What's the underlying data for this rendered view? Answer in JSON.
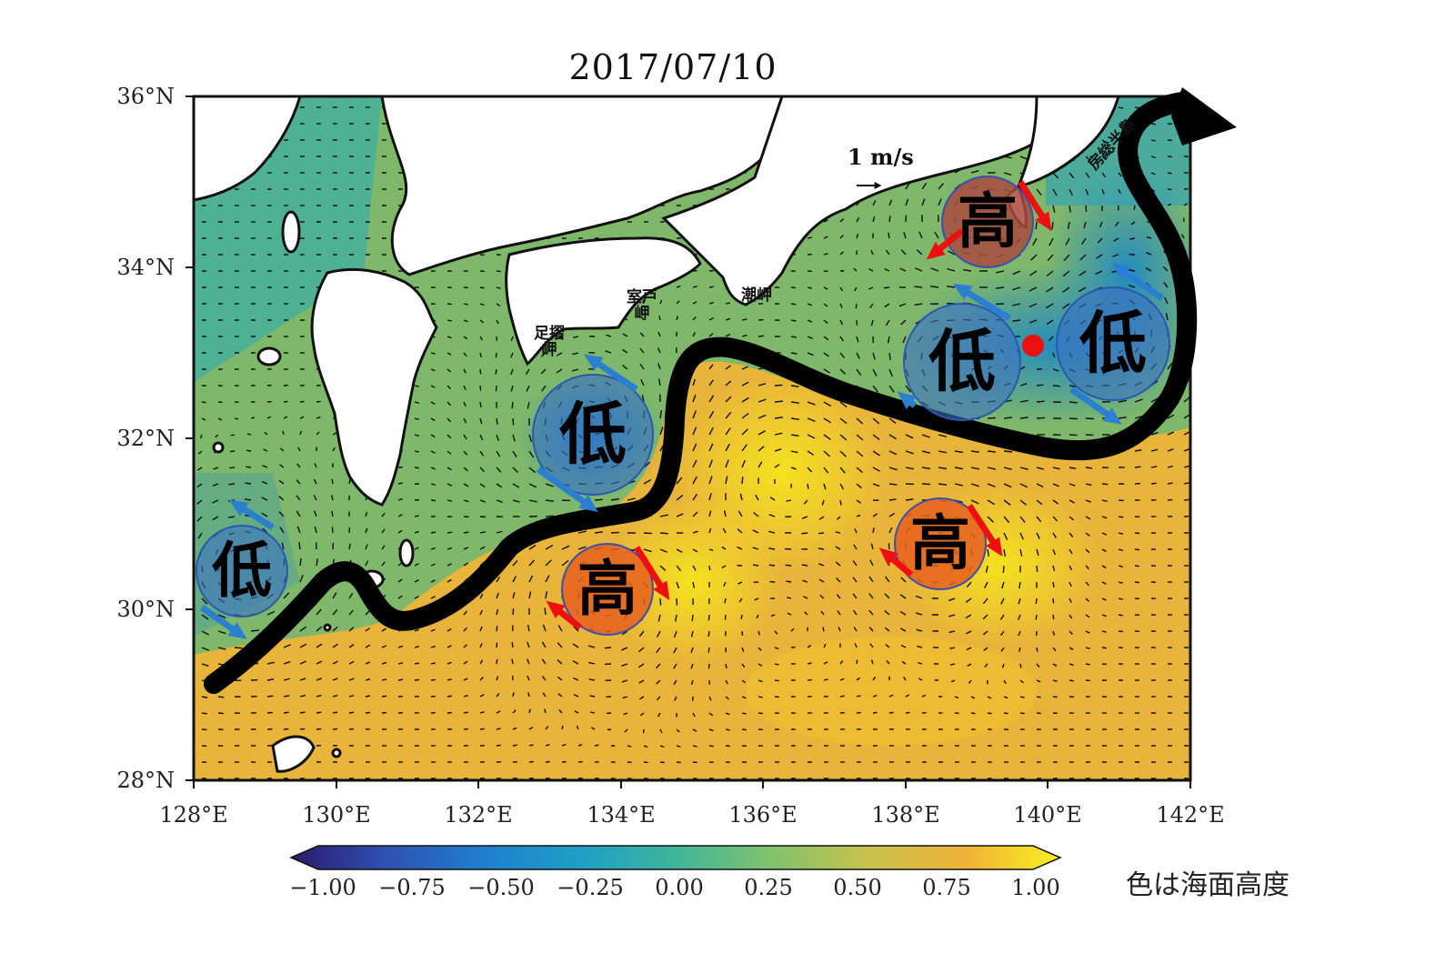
{
  "title": "2017/07/10",
  "lat_labels": [
    "36°N",
    "34°N",
    "32°N",
    "30°N",
    "28°N"
  ],
  "lon_labels": [
    "128°E",
    "130°E",
    "132°E",
    "134°E",
    "136°E",
    "138°E",
    "140°E",
    "142°E"
  ],
  "colorbar": {
    "ticks": [
      "−1.00",
      "−0.75",
      "−0.50",
      "−0.25",
      "0.00",
      "0.25",
      "0.50",
      "0.75",
      "1.00"
    ],
    "caption": "色は海面高度",
    "colors": [
      "#2b1a6b",
      "#2f4fb0",
      "#1f7fd0",
      "#1fa0c4",
      "#3fb49a",
      "#7fc26e",
      "#c7c24e",
      "#f0b23a",
      "#f8f21e"
    ]
  },
  "scale": {
    "label": "1 m/s"
  },
  "places": {
    "ashizuri": "足摺岬",
    "muroto": "室戸岬",
    "shionomisaki": "潮岬",
    "boso": "房総半島"
  },
  "eddies": [
    {
      "label": "低",
      "type": "low"
    },
    {
      "label": "低",
      "type": "low"
    },
    {
      "label": "低",
      "type": "low"
    },
    {
      "label": "低",
      "type": "low"
    },
    {
      "label": "高",
      "type": "high"
    },
    {
      "label": "高",
      "type": "high"
    },
    {
      "label": "高",
      "type": "high"
    }
  ],
  "colors": {
    "low": "#3b6fc4",
    "high": "#e05a20",
    "high_land": "#b04a3a",
    "arrow_low": "#2a7fd0",
    "arrow_high": "#ee1010",
    "kuroshio": "#000000",
    "land": "#ffffff",
    "marker": "#ee1010"
  }
}
